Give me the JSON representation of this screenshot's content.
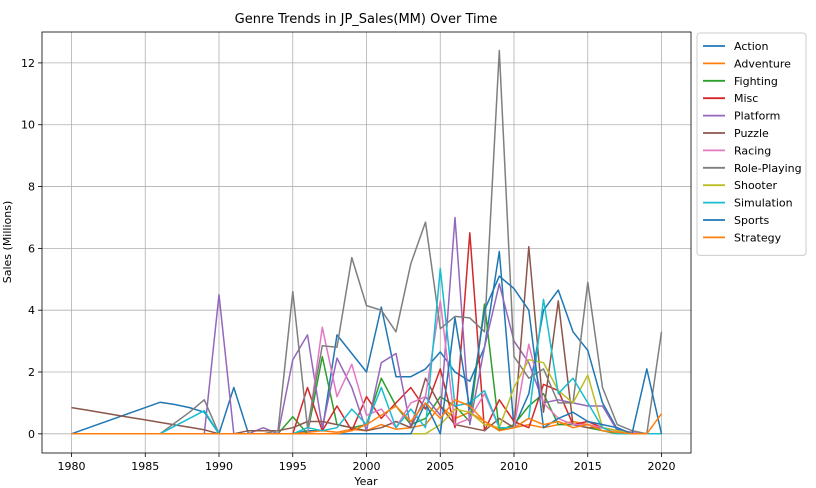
{
  "chart_data": {
    "type": "line",
    "title": "Genre Trends in JP_Sales(MM) Over Time",
    "xlabel": "Year",
    "ylabel": "Sales (Millions)",
    "xlim": [
      1978,
      2022
    ],
    "ylim": [
      -0.62,
      13.0
    ],
    "xticks": [
      1980,
      1985,
      1990,
      1995,
      2000,
      2005,
      2010,
      2015,
      2020
    ],
    "yticks": [
      0,
      2,
      4,
      6,
      8,
      10,
      12
    ],
    "grid": true,
    "legend_position": "outside-right",
    "x": [
      1980,
      1981,
      1982,
      1983,
      1984,
      1985,
      1986,
      1987,
      1988,
      1989,
      1990,
      1991,
      1992,
      1993,
      1994,
      1995,
      1996,
      1997,
      1998,
      1999,
      2000,
      2001,
      2002,
      2003,
      2004,
      2005,
      2006,
      2007,
      2008,
      2009,
      2010,
      2011,
      2012,
      2013,
      2014,
      2015,
      2016,
      2017,
      2018,
      2019,
      2020
    ],
    "series": [
      {
        "name": "Action",
        "color": "#1f77b4",
        "values": [
          0,
          0.17,
          0.34,
          0.51,
          0.68,
          0.85,
          1.02,
          0.95,
          0.85,
          0.7,
          0,
          1.5,
          0,
          0,
          0,
          0,
          0.1,
          0.1,
          3.2,
          2.6,
          2.0,
          4.1,
          1.85,
          1.85,
          2.1,
          2.65,
          2.0,
          1.7,
          2.8,
          5.9,
          0.2,
          1.3,
          4.0,
          4.65,
          3.3,
          2.7,
          1.0,
          0.15,
          0,
          0,
          0
        ]
      },
      {
        "name": "Adventure",
        "color": "#ff7f0e",
        "values": [
          0,
          0,
          0,
          0,
          0,
          0,
          0,
          0,
          0,
          0,
          0,
          0,
          0,
          0,
          0,
          0,
          0.05,
          0.1,
          0.05,
          0.15,
          0.1,
          0.3,
          0.15,
          0.2,
          0.3,
          0.9,
          0.5,
          0.7,
          0.4,
          0.15,
          0.2,
          0.3,
          0.2,
          0.3,
          0.4,
          0.3,
          0.2,
          0.1,
          0.05,
          0,
          0
        ]
      },
      {
        "name": "Fighting",
        "color": "#2ca02c",
        "values": [
          0,
          0,
          0,
          0,
          0,
          0,
          0,
          0,
          0,
          0,
          0,
          0,
          0,
          0,
          0,
          0.55,
          0,
          2.5,
          0.3,
          0.2,
          0.3,
          1.8,
          0.9,
          0.3,
          0.5,
          1.2,
          0.9,
          0.4,
          4.2,
          0.1,
          0.3,
          0.9,
          1.3,
          0.3,
          0.3,
          0.2,
          0.1,
          0,
          0,
          0,
          0
        ]
      },
      {
        "name": "Misc",
        "color": "#d62728",
        "values": [
          0,
          0,
          0,
          0,
          0,
          0,
          0,
          0,
          0,
          0,
          0,
          0,
          0,
          0,
          0,
          0,
          1.5,
          0.1,
          0.9,
          0.1,
          1.2,
          0.5,
          1.0,
          1.5,
          0.8,
          2.1,
          0.2,
          6.5,
          0.1,
          1.1,
          0.4,
          0.2,
          1.6,
          1.4,
          0.3,
          0.4,
          0.2,
          0.1,
          0.05,
          0,
          0
        ]
      },
      {
        "name": "Platform",
        "color": "#9467bd",
        "values": [
          0,
          0,
          0,
          0,
          0,
          0,
          0,
          0,
          0,
          0,
          4.5,
          0,
          0,
          0.2,
          0,
          2.4,
          3.2,
          0.2,
          2.45,
          1.5,
          0.1,
          2.3,
          2.6,
          0.2,
          1.2,
          0.6,
          7.0,
          0.3,
          2.8,
          4.85,
          3.0,
          2.3,
          1.0,
          1.1,
          1.0,
          0.9,
          0.9,
          0.1,
          0,
          0,
          0
        ]
      },
      {
        "name": "Puzzle",
        "color": "#8c564b",
        "values": [
          0.85,
          0.77,
          0.69,
          0.61,
          0.53,
          0.45,
          0.37,
          0.29,
          0.21,
          0.13,
          0,
          0,
          0.1,
          0.1,
          0.1,
          0.2,
          0.4,
          0.4,
          0.3,
          0.2,
          0.1,
          0.2,
          0.4,
          0.2,
          1.8,
          0.9,
          0.3,
          0.2,
          0.1,
          0.5,
          0.2,
          6.05,
          0.7,
          4.3,
          0.3,
          0.2,
          0.2,
          0.1,
          0,
          0,
          0
        ]
      },
      {
        "name": "Racing",
        "color": "#e377c2",
        "values": [
          0,
          0,
          0,
          0,
          0,
          0,
          0,
          0,
          0,
          0,
          0,
          0,
          0,
          0,
          0,
          0,
          0,
          3.45,
          1.2,
          2.25,
          0.6,
          0.8,
          0.2,
          1.0,
          1.2,
          4.3,
          0.3,
          0.5,
          1.3,
          0.2,
          0.2,
          2.9,
          1.0,
          0.5,
          0.3,
          0.3,
          0.2,
          0.1,
          0.05,
          0,
          0
        ]
      },
      {
        "name": "Role-Playing",
        "color": "#7f7f7f",
        "values": [
          0,
          0,
          0,
          0,
          0,
          0,
          0,
          0.35,
          0.7,
          1.1,
          0,
          0,
          0,
          0,
          0.1,
          4.6,
          0.2,
          2.85,
          2.8,
          5.7,
          4.15,
          4.0,
          3.3,
          5.5,
          6.85,
          3.4,
          3.8,
          3.75,
          3.3,
          12.4,
          2.5,
          1.8,
          2.1,
          1.0,
          1.0,
          4.9,
          1.5,
          0.3,
          0.1,
          0,
          3.3
        ]
      },
      {
        "name": "Shooter",
        "color": "#bcbd22",
        "values": [
          0,
          0,
          0,
          0,
          0,
          0,
          0,
          0,
          0,
          0,
          0,
          0,
          0,
          0,
          0,
          0,
          0,
          0,
          0,
          0,
          0,
          0,
          0,
          0,
          0,
          0.3,
          0.8,
          0.7,
          0.3,
          0.2,
          1.5,
          2.4,
          2.3,
          1.4,
          1.0,
          1.9,
          0.2,
          0.1,
          0,
          0,
          0
        ]
      },
      {
        "name": "Simulation",
        "color": "#17becf",
        "values": [
          0,
          0,
          0,
          0,
          0,
          0,
          0,
          0.25,
          0.5,
          0.75,
          0,
          0,
          0,
          0,
          0,
          0,
          0.2,
          0.1,
          0.2,
          0.8,
          0.3,
          1.5,
          0.2,
          0.8,
          0.2,
          5.35,
          0.9,
          1.0,
          1.4,
          0.2,
          0.2,
          0.5,
          4.35,
          1.3,
          1.8,
          1.0,
          0.2,
          0,
          0,
          0,
          0
        ]
      },
      {
        "name": "Sports",
        "color": "#1f77b4",
        "values": [
          0,
          0,
          0,
          0,
          0,
          0,
          0,
          0,
          0,
          0,
          0,
          0,
          0,
          0,
          0,
          0,
          0,
          0,
          0,
          0,
          0,
          0,
          0,
          0,
          1.0,
          0,
          3.75,
          0.8,
          4.0,
          5.1,
          4.7,
          4.0,
          0.2,
          0.5,
          0.7,
          0.4,
          0.3,
          0.2,
          0,
          2.1,
          0
        ]
      },
      {
        "name": "Strategy",
        "color": "#ff7f0e",
        "values": [
          0,
          0,
          0,
          0,
          0,
          0,
          0,
          0,
          0,
          0,
          0,
          0,
          0,
          0,
          0,
          0,
          0,
          0,
          0,
          0.1,
          0.3,
          0.6,
          0.9,
          0.4,
          1.0,
          0.5,
          1.1,
          0.9,
          0.4,
          0.1,
          0.2,
          0.5,
          0.3,
          0.4,
          0.2,
          0.3,
          0.1,
          0.05,
          0,
          0,
          0.65
        ]
      }
    ]
  }
}
